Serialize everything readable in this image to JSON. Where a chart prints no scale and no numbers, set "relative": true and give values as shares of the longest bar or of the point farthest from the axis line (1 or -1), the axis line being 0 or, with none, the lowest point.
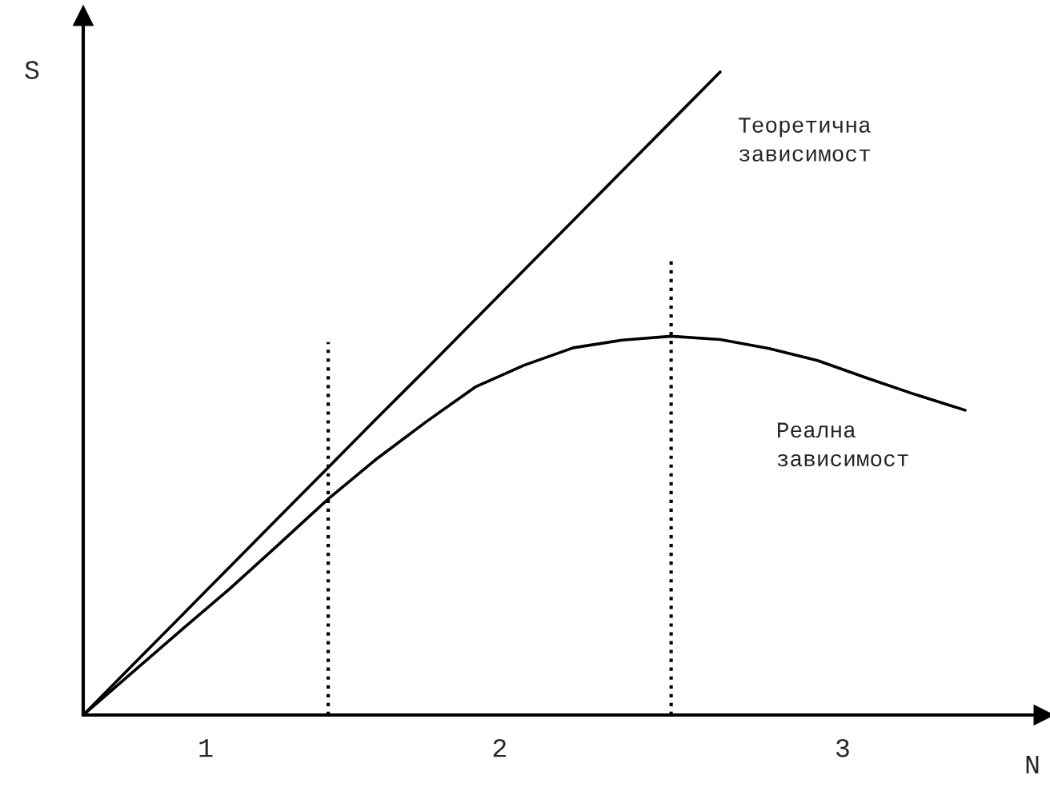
{
  "chart_data": {
    "type": "line",
    "relative": true,
    "xlabel": "N",
    "ylabel": "S",
    "marker": "none",
    "line_style": "solid",
    "categories": [
      null,
      null,
      null,
      null,
      null,
      null,
      null,
      null,
      null,
      null,
      null,
      null,
      null,
      null,
      null,
      null,
      null,
      null,
      null
    ],
    "series": [
      {
        "name": "Теоретична зависимост",
        "color": "#000000",
        "values": [
          0,
          0.077,
          0.154,
          0.231,
          0.308,
          0.385,
          0.462,
          0.538,
          0.615,
          0.692,
          0.769,
          0.846,
          0.923,
          1,
          null,
          null,
          null,
          null,
          null
        ]
      },
      {
        "name": "Реална зависимост",
        "color": "#000000",
        "values": [
          0,
          0.066,
          0.132,
          0.197,
          0.266,
          0.336,
          0.399,
          0.456,
          0.51,
          0.544,
          0.571,
          0.583,
          0.589,
          0.584,
          0.57,
          0.551,
          0.524,
          0.498,
          0.474
        ]
      }
    ],
    "annotations": [
      "1",
      "2",
      "3"
    ]
  }
}
